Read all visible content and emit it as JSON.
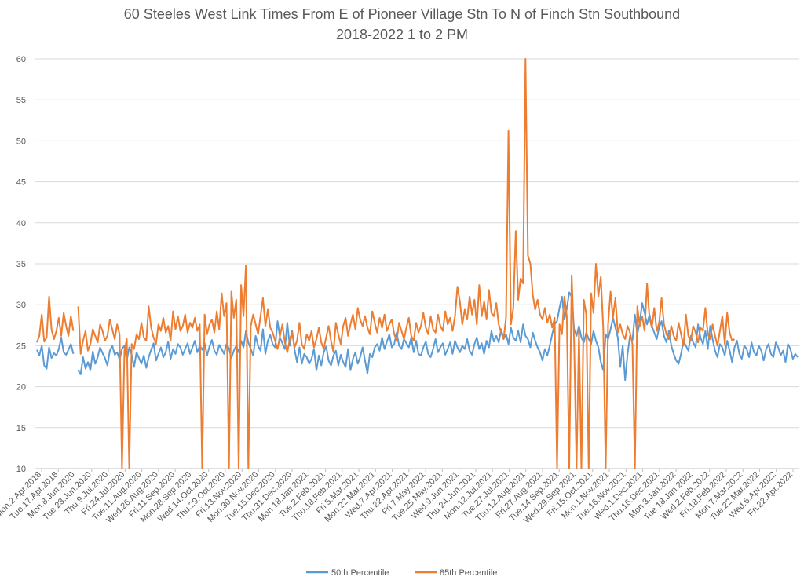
{
  "chart_data": {
    "type": "line",
    "title": "60 Steeles West Link Times From E of Pioneer Village Stn To N of Finch Stn Southbound",
    "subtitle": "2018-2022 1 to 2 PM",
    "xlabel": "",
    "ylabel": "",
    "ylim": [
      10,
      60
    ],
    "yticks": [
      10,
      15,
      20,
      25,
      30,
      35,
      40,
      45,
      50,
      55,
      60
    ],
    "grid": true,
    "legend_position": "bottom",
    "colors": {
      "p50": "#5B9BD5",
      "p85": "#ED7D31",
      "grid": "#D9D9D9",
      "axis": "#BFBFBF",
      "text": "#595959"
    },
    "x_tick_labels": [
      "Mon.2.Apr.2018",
      "Tue.17.Apr.2018",
      "Mon.8.Jun.2020",
      "Tue.23.Jun.2020",
      "Thu.9.Jul.2020",
      "Fri.24.Jul.2020",
      "Tue.11.Aug.2020",
      "Wed.26.Aug.2020",
      "Fri.11.Sep.2020",
      "Mon.28.Sep.2020",
      "Wed.14.Oct.2020",
      "Thu.29.Oct.2020",
      "Fri.13.Nov.2020",
      "Mon.30.Nov.2020",
      "Tue.15.Dec.2020",
      "Thu.31.Dec.2020",
      "Mon.18.Jan.2021",
      "Tue.2.Feb.2021",
      "Thu.18.Feb.2021",
      "Fri.5.Mar.2021",
      "Mon.22.Mar.2021",
      "Wed.7.Apr.2021",
      "Thu.22.Apr.2021",
      "Fri.7.May.2021",
      "Tue.25.May.2021",
      "Wed.9.Jun.2021",
      "Thu.24.Jun.2021",
      "Mon.12.Jul.2021",
      "Tue.27.Jul.2021",
      "Thu.12.Aug.2021",
      "Fri.27.Aug.2021",
      "Tue.14.Sep.2021",
      "Wed.29.Sep.2021",
      "Fri.15.Oct.2021",
      "Mon.1.Nov.2021",
      "Tue.16.Nov.2021",
      "Wed.1.Dec.2021",
      "Thu.16.Dec.2021",
      "Mon.3.Jan.2022",
      "Tue.18.Jan.2022",
      "Wed.2.Feb.2022",
      "Fri.18.Feb.2022",
      "Mon.7.Mar.2022",
      "Tue.22.Mar.2022",
      "Wed.6.Apr.2022",
      "Fri.22.Apr.2022"
    ],
    "series": [
      {
        "name": "50th Percentile",
        "values": [
          24.5,
          23.8,
          25.0,
          22.6,
          22.2,
          24.8,
          23.5,
          24.1,
          23.8,
          24.6,
          26.0,
          24.2,
          23.9,
          24.5,
          25.2,
          24.0,
          null,
          22.0,
          21.5,
          23.6,
          22.2,
          23.0,
          22.0,
          24.3,
          22.8,
          23.6,
          24.8,
          24.1,
          23.5,
          22.6,
          24.4,
          25.0,
          23.9,
          24.2,
          23.3,
          24.6,
          25.0,
          23.2,
          24.8,
          23.9,
          22.4,
          24.2,
          23.5,
          22.8,
          23.8,
          22.3,
          23.6,
          24.5,
          25.3,
          23.2,
          24.0,
          24.8,
          23.6,
          24.2,
          25.5,
          23.4,
          24.6,
          24.0,
          25.2,
          24.8,
          23.9,
          24.6,
          25.3,
          24.0,
          24.8,
          25.6,
          24.2,
          25.0,
          24.5,
          25.3,
          23.8,
          24.9,
          25.7,
          24.4,
          23.9,
          25.1,
          24.6,
          24.0,
          25.2,
          24.7,
          23.5,
          24.4,
          25.0,
          24.2,
          25.6,
          24.8,
          26.8,
          25.4,
          24.6,
          23.8,
          26.2,
          25.0,
          24.4,
          27.0,
          24.0,
          25.6,
          26.3,
          25.2,
          24.8,
          28.0,
          26.0,
          25.3,
          24.6,
          27.8,
          25.0,
          26.8,
          24.5,
          23.0,
          24.8,
          22.8,
          24.0,
          23.6,
          22.8,
          23.4,
          24.6,
          22.0,
          23.8,
          22.6,
          24.2,
          24.9,
          23.2,
          22.6,
          23.8,
          24.4,
          22.6,
          23.9,
          23.0,
          22.4,
          24.6,
          22.0,
          23.4,
          24.2,
          22.8,
          23.6,
          24.8,
          23.2,
          21.6,
          24.0,
          23.6,
          24.8,
          25.2,
          24.4,
          26.0,
          24.6,
          25.5,
          26.4,
          24.8,
          25.2,
          26.6,
          25.0,
          24.6,
          25.8,
          25.3,
          24.8,
          26.0,
          24.2,
          25.6,
          24.0,
          23.8,
          24.8,
          25.5,
          24.0,
          23.6,
          24.6,
          25.8,
          24.2,
          24.8,
          25.3,
          23.9,
          24.6,
          25.4,
          24.0,
          25.6,
          24.8,
          24.2,
          25.0,
          24.6,
          25.8,
          24.4,
          23.9,
          25.2,
          26.0,
          24.6,
          25.3,
          24.0,
          25.6,
          24.8,
          26.8,
          25.5,
          26.2,
          25.4,
          27.0,
          25.8,
          26.4,
          25.2,
          27.2,
          26.0,
          25.6,
          26.8,
          25.4,
          27.6,
          26.2,
          25.8,
          24.8,
          26.6,
          25.6,
          24.8,
          24.2,
          23.2,
          24.6,
          23.8,
          25.0,
          26.4,
          27.6,
          28.0,
          29.6,
          31.0,
          28.2,
          29.5,
          31.5,
          31.0,
          27.0,
          26.2,
          27.4,
          26.0,
          25.4,
          26.6,
          25.8,
          25.2,
          26.8,
          25.6,
          24.8,
          23.0,
          22.0,
          26.4,
          25.8,
          27.0,
          28.4,
          27.2,
          26.0,
          22.4,
          25.0,
          20.8,
          24.0,
          26.2,
          25.6,
          28.8,
          26.4,
          27.8,
          30.2,
          29.0,
          27.6,
          28.8,
          27.4,
          26.6,
          25.8,
          27.2,
          28.0,
          26.2,
          25.4,
          26.8,
          25.0,
          24.0,
          23.2,
          22.8,
          24.0,
          25.6,
          25.0,
          24.4,
          26.2,
          25.4,
          24.8,
          27.6,
          26.0,
          25.2,
          26.8,
          24.6,
          27.4,
          25.8,
          24.4,
          23.6,
          25.2,
          24.8,
          23.8,
          25.6,
          24.4,
          23.0,
          24.8,
          25.6,
          24.0,
          23.4,
          25.0,
          24.6,
          23.6,
          25.4,
          24.2,
          23.8,
          25.0,
          24.4,
          23.2,
          24.6,
          25.2,
          24.0,
          23.6,
          25.4,
          24.8,
          23.8,
          24.4,
          23.0,
          25.2,
          24.6,
          23.4,
          24.0,
          23.6
        ]
      },
      {
        "name": "85th Percentile",
        "values": [
          25.4,
          26.2,
          28.8,
          25.5,
          26.0,
          31.0,
          27.0,
          25.8,
          26.8,
          28.4,
          26.2,
          29.0,
          27.4,
          26.2,
          28.6,
          26.8,
          null,
          29.8,
          24.0,
          25.6,
          26.8,
          24.4,
          25.2,
          27.0,
          26.2,
          25.4,
          27.6,
          26.8,
          25.6,
          26.2,
          28.2,
          27.0,
          25.8,
          27.6,
          26.4,
          10.0,
          24.4,
          25.8,
          10.0,
          25.2,
          24.6,
          26.4,
          25.8,
          27.8,
          26.0,
          25.6,
          29.8,
          27.2,
          26.0,
          25.2,
          27.6,
          26.8,
          28.4,
          26.6,
          27.4,
          25.6,
          29.2,
          27.0,
          28.6,
          26.8,
          27.4,
          28.8,
          26.6,
          27.8,
          27.2,
          28.4,
          26.8,
          27.6,
          10.0,
          28.8,
          26.4,
          27.6,
          28.2,
          26.6,
          29.2,
          27.0,
          31.4,
          28.6,
          30.2,
          10.0,
          31.6,
          28.4,
          30.6,
          10.0,
          32.4,
          28.6,
          34.8,
          10.0,
          27.4,
          28.8,
          27.6,
          26.4,
          28.6,
          30.8,
          27.4,
          29.4,
          27.2,
          26.6,
          25.6,
          24.6,
          26.2,
          27.6,
          25.4,
          24.2,
          25.8,
          26.6,
          24.8,
          25.6,
          27.8,
          25.2,
          24.6,
          26.4,
          25.6,
          26.8,
          24.8,
          25.8,
          27.2,
          25.4,
          24.6,
          26.0,
          27.4,
          25.6,
          24.2,
          27.8,
          26.4,
          25.2,
          27.4,
          28.4,
          26.2,
          27.6,
          28.8,
          27.0,
          29.6,
          28.2,
          27.4,
          28.6,
          27.2,
          26.4,
          29.2,
          27.8,
          26.6,
          28.4,
          27.2,
          28.8,
          26.8,
          27.6,
          28.2,
          26.4,
          25.6,
          27.8,
          26.8,
          25.8,
          27.2,
          28.4,
          26.2,
          25.6,
          27.8,
          26.6,
          27.4,
          29.0,
          27.2,
          26.4,
          28.6,
          27.0,
          26.6,
          28.8,
          27.4,
          26.8,
          29.2,
          27.6,
          28.4,
          26.8,
          28.6,
          32.2,
          30.4,
          27.6,
          29.4,
          28.2,
          31.0,
          28.8,
          30.6,
          27.6,
          32.4,
          28.6,
          30.4,
          28.2,
          31.8,
          29.0,
          28.6,
          30.2,
          27.6,
          26.6,
          25.8,
          28.4,
          51.2,
          27.6,
          29.6,
          39.0,
          30.6,
          33.2,
          32.6,
          60.0,
          36.0,
          35.0,
          31.2,
          29.4,
          30.6,
          28.8,
          28.2,
          29.6,
          27.8,
          28.8,
          27.2,
          28.4,
          10.0,
          27.6,
          26.4,
          31.0,
          28.6,
          10.0,
          33.6,
          25.6,
          10.0,
          26.8,
          10.0,
          30.6,
          28.8,
          10.0,
          31.4,
          29.0,
          35.0,
          31.0,
          33.4,
          27.2,
          10.0,
          27.6,
          31.6,
          28.4,
          30.8,
          26.6,
          27.6,
          26.4,
          25.8,
          27.4,
          26.6,
          25.2,
          10.0,
          29.8,
          27.4,
          28.6,
          26.8,
          32.6,
          28.4,
          27.2,
          29.6,
          26.8,
          27.8,
          30.8,
          27.6,
          26.4,
          25.8,
          27.4,
          26.2,
          25.6,
          27.8,
          26.4,
          25.0,
          28.8,
          26.2,
          25.6,
          27.4,
          26.6,
          25.4,
          27.2,
          26.8,
          29.6,
          26.4,
          25.8,
          27.6,
          26.2,
          25.0,
          26.8,
          28.6,
          25.2,
          29.0,
          26.6,
          25.6,
          25.8
        ]
      }
    ]
  },
  "legend": {
    "p50_label": "50th Percentile",
    "p85_label": "85th Percentile"
  }
}
